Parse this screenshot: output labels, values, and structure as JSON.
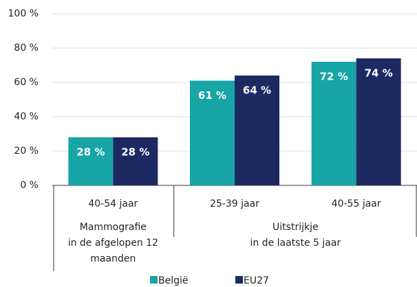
{
  "chart_data": {
    "type": "bar",
    "groups": [
      {
        "label": [
          "Mammografie",
          "in de afgelopen 12",
          "maanden"
        ],
        "categories": [
          "40-54 jaar"
        ]
      },
      {
        "label": [
          "Uitstrijkje",
          "in de laatste 5 jaar"
        ],
        "categories": [
          "25-39 jaar",
          "40-55 jaar"
        ]
      }
    ],
    "series": [
      {
        "name": "België",
        "color": "#17a5a5",
        "values": [
          28,
          61,
          72
        ],
        "value_labels": [
          "28 %",
          "61 %",
          "72 %"
        ]
      },
      {
        "name": "EU27",
        "color": "#1d2a62",
        "values": [
          28,
          64,
          74
        ],
        "value_labels": [
          "28 %",
          "64 %",
          "74 %"
        ]
      }
    ],
    "ylim": [
      0,
      100
    ],
    "yticks": [
      {
        "value": 0,
        "label": "0 %"
      },
      {
        "value": 20,
        "label": "20 %"
      },
      {
        "value": 40,
        "label": "40 %"
      },
      {
        "value": 60,
        "label": "60 %"
      },
      {
        "value": 80,
        "label": "80 %"
      },
      {
        "value": 100,
        "label": "100 %"
      }
    ],
    "grid": true,
    "legend": "bottom"
  }
}
